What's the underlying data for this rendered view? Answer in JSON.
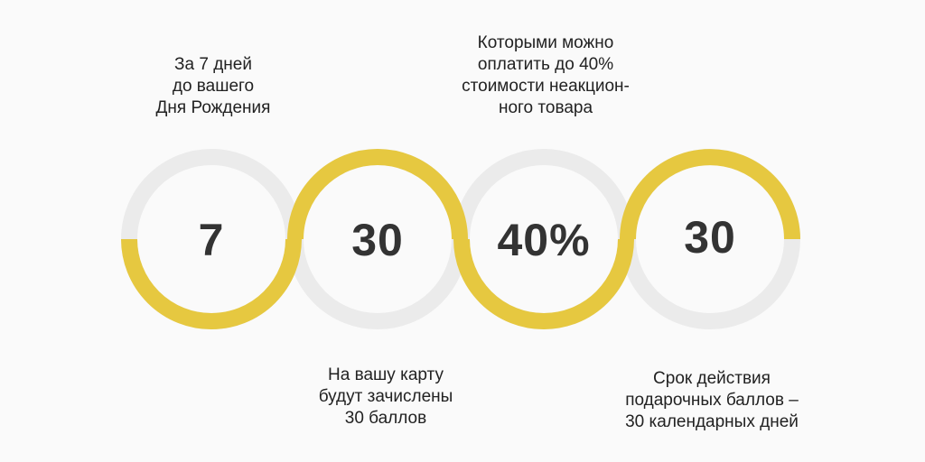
{
  "colors": {
    "background": "#fafafa",
    "ring_track": "#ebebeb",
    "ring_accent": "#e6c840",
    "text": "#333333"
  },
  "steps": [
    {
      "value": "7",
      "caption": "За 7 дней\nдо вашего\nДня Рождения"
    },
    {
      "value": "30",
      "caption": "На вашу карту\nбудут зачислены\n30 баллов"
    },
    {
      "value": "40%",
      "caption": "Которыми можно\nоплатить до 40%\nстоимости неакцион-\nного товара"
    },
    {
      "value": "30",
      "caption": "Срок действия\nподарочных баллов –\n30 календарных дней"
    }
  ]
}
